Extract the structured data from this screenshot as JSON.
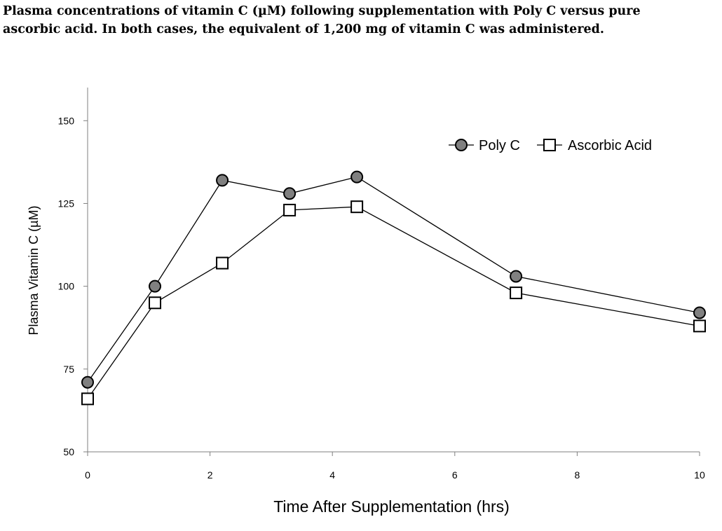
{
  "figure": {
    "title_line1": "Plasma concentrations of vitamin C (µM) following supplementation with Poly C versus pure",
    "title_line2": "ascorbic acid. In both cases, the equivalent of 1,200 mg of vitamin C was administered."
  },
  "chart_data": {
    "type": "line",
    "xlabel": "Time After Supplementation (hrs)",
    "ylabel": "Plasma Vitamin C (µM)",
    "xlim": [
      0,
      10
    ],
    "ylim": [
      50,
      160
    ],
    "x_ticks": [
      0,
      2,
      4,
      6,
      8,
      10
    ],
    "y_ticks": [
      50,
      75,
      100,
      125,
      150
    ],
    "grid": false,
    "legend_position": "top-right",
    "series": [
      {
        "name": "Poly C",
        "marker": "circle",
        "marker_fill": "#808080",
        "x": [
          0,
          1.1,
          2.2,
          3.3,
          4.4,
          7,
          10
        ],
        "y": [
          71,
          100,
          132,
          128,
          133,
          103,
          92
        ]
      },
      {
        "name": "Ascorbic Acid",
        "marker": "square",
        "marker_fill": "#ffffff",
        "x": [
          0,
          1.1,
          2.2,
          3.3,
          4.4,
          7,
          10
        ],
        "y": [
          66,
          95,
          107,
          123,
          124,
          98,
          88
        ]
      }
    ]
  }
}
